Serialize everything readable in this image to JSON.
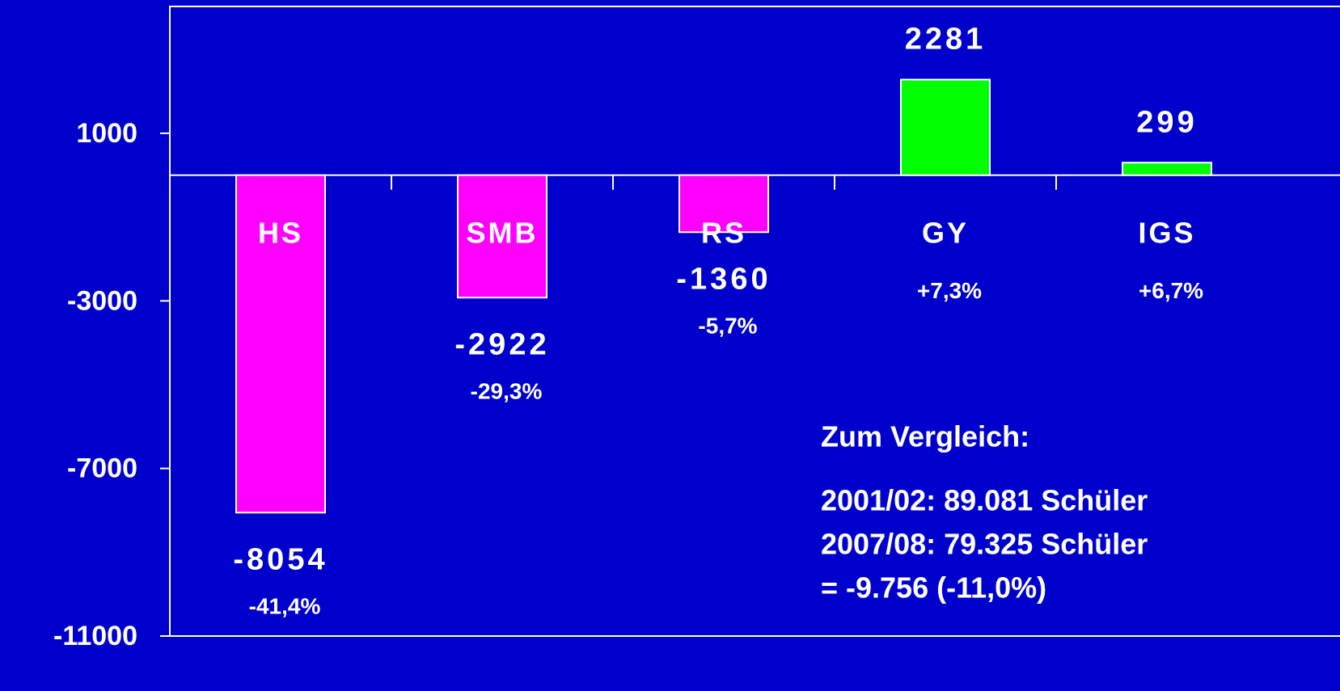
{
  "chart_data": {
    "type": "bar",
    "categories": [
      "HS",
      "SMB",
      "RS",
      "GY",
      "IGS"
    ],
    "values": [
      -8054,
      -2922,
      -1360,
      2281,
      299
    ],
    "colors": [
      "#ff00ff",
      "#ff00ff",
      "#ff00ff",
      "#00ff00",
      "#00ff00"
    ],
    "annotations": [
      "-41,4%",
      "-29,3%",
      "-5,7%",
      "+7,3%",
      "+6,7%"
    ],
    "note": [
      "Zum Vergleich:",
      "2001/02:  89.081 Schüler",
      "2007/08:  79.325 Schüler",
      "= -9.756 (-11,0%)"
    ],
    "ylim": [
      -11000,
      4000
    ],
    "yticks": [
      1000,
      -3000,
      -7000,
      -11000
    ]
  }
}
